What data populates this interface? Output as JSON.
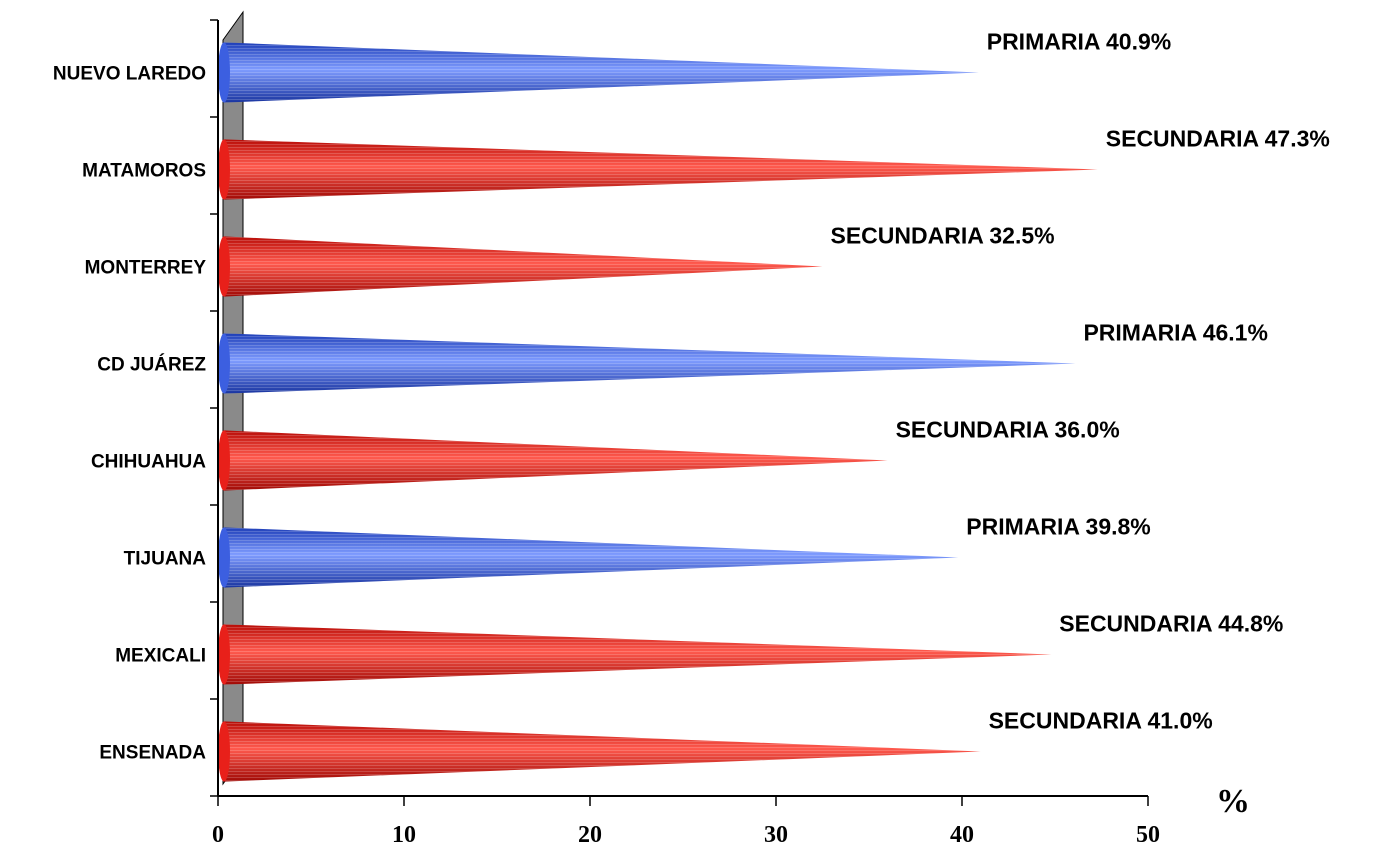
{
  "chart_data": {
    "type": "bar",
    "orientation": "horizontal",
    "categories": [
      "NUEVO LAREDO",
      "MATAMOROS",
      "MONTERREY",
      "CD JUÁREZ",
      "CHIHUAHUA",
      "TIJUANA",
      "MEXICALI",
      "ENSENADA"
    ],
    "values": [
      40.9,
      47.3,
      32.5,
      46.1,
      36.0,
      39.8,
      44.8,
      41.0
    ],
    "level": [
      "PRIMARIA",
      "SECUNDARIA",
      "SECUNDARIA",
      "PRIMARIA",
      "SECUNDARIA",
      "PRIMARIA",
      "SECUNDARIA",
      "SECUNDARIA"
    ],
    "data_labels": [
      "PRIMARIA 40.9%",
      "SECUNDARIA 47.3%",
      "SECUNDARIA 32.5%",
      "PRIMARIA 46.1%",
      "SECUNDARIA 36.0%",
      "PRIMARIA 39.8%",
      "SECUNDARIA 44.8%",
      "SECUNDARIA 41.0%"
    ],
    "level_colors": {
      "PRIMARIA": "#3c5fe0",
      "SECUNDARIA": "#e8201a"
    },
    "xlim": [
      0,
      50
    ],
    "xticks": [
      0,
      10,
      20,
      30,
      40,
      50
    ],
    "xlabel": "%",
    "grid": false,
    "legend": "none",
    "mark_shape": "cone"
  }
}
